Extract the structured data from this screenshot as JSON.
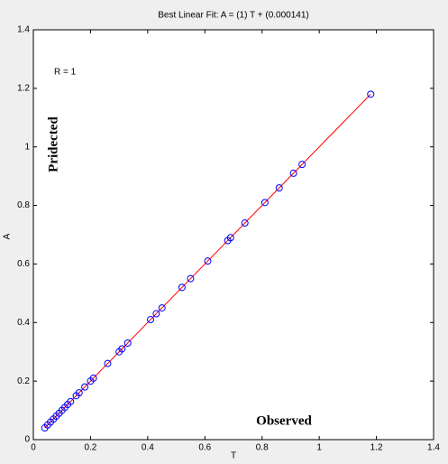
{
  "chart_data": {
    "type": "scatter",
    "title": "Best Linear Fit:  A = (1) T + (0.000141)",
    "x_label": "T",
    "y_label": "A",
    "annotations": [
      "R = 1",
      "Pridected",
      "Observed"
    ],
    "xlim": [
      0,
      1.4
    ],
    "ylim": [
      0,
      1.4
    ],
    "xticks": [
      0,
      0.2,
      0.4,
      0.6,
      0.8,
      1,
      1.2,
      1.4
    ],
    "yticks": [
      0,
      0.2,
      0.4,
      0.6,
      0.8,
      1,
      1.2,
      1.4
    ],
    "grid": false,
    "series": [
      {
        "color": "#0000ff",
        "style": "markers",
        "x": [
          0.04,
          0.05,
          0.06,
          0.07,
          0.08,
          0.09,
          0.1,
          0.11,
          0.12,
          0.13,
          0.15,
          0.16,
          0.18,
          0.2,
          0.21,
          0.26,
          0.3,
          0.31,
          0.33,
          0.41,
          0.43,
          0.45,
          0.52,
          0.55,
          0.61,
          0.68,
          0.69,
          0.74,
          0.81,
          0.86,
          0.91,
          0.94,
          1.18
        ],
        "values": [
          0.04,
          0.05,
          0.06,
          0.07,
          0.08,
          0.09,
          0.1,
          0.11,
          0.12,
          0.13,
          0.15,
          0.16,
          0.18,
          0.2,
          0.21,
          0.26,
          0.3,
          0.31,
          0.33,
          0.41,
          0.43,
          0.45,
          0.52,
          0.55,
          0.61,
          0.68,
          0.69,
          0.74,
          0.81,
          0.86,
          0.91,
          0.94,
          1.18
        ]
      },
      {
        "color": "#ff0000",
        "style": "line",
        "x": [
          0.04,
          1.18
        ],
        "values": [
          0.04,
          1.18
        ]
      }
    ]
  }
}
